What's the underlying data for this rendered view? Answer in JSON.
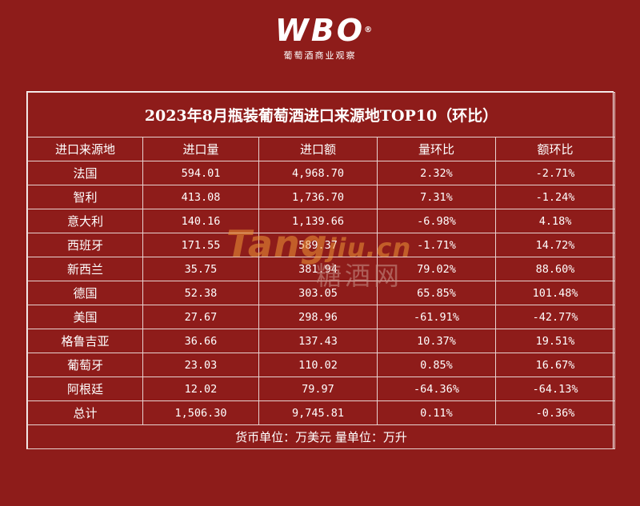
{
  "brand": {
    "logo_text": "WBO",
    "reg_mark": "®",
    "subtitle": "葡萄酒商业观察"
  },
  "table": {
    "title": "2023年8月瓶装葡萄酒进口来源地TOP10（环比）",
    "headers": [
      "进口来源地",
      "进口量",
      "进口额",
      "量环比",
      "额环比"
    ],
    "rows": [
      [
        "法国",
        "594.01",
        "4,968.70",
        "2.32%",
        "-2.71%"
      ],
      [
        "智利",
        "413.08",
        "1,736.70",
        "7.31%",
        "-1.24%"
      ],
      [
        "意大利",
        "140.16",
        "1,139.66",
        "-6.98%",
        "4.18%"
      ],
      [
        "西班牙",
        "171.55",
        "589.37",
        "-1.71%",
        "14.72%"
      ],
      [
        "新西兰",
        "35.75",
        "381.94",
        "79.02%",
        "88.60%"
      ],
      [
        "德国",
        "52.38",
        "303.05",
        "65.85%",
        "101.48%"
      ],
      [
        "美国",
        "27.67",
        "298.96",
        "-61.91%",
        "-42.77%"
      ],
      [
        "格鲁吉亚",
        "36.66",
        "137.43",
        "10.37%",
        "19.51%"
      ],
      [
        "葡萄牙",
        "23.03",
        "110.02",
        "0.85%",
        "16.67%"
      ],
      [
        "阿根廷",
        "12.02",
        "79.97",
        "-64.36%",
        "-64.13%"
      ],
      [
        "总计",
        "1,506.30",
        "9,745.81",
        "0.11%",
        "-0.36%"
      ]
    ],
    "footer": "货币单位：万美元  量单位：万升"
  },
  "watermark": {
    "text_main": "Tang",
    "text_tail": "jiu.cn",
    "text_cn": "糖酒网"
  },
  "colors": {
    "background": "#8e1c1a",
    "text": "#ffffff",
    "watermark": "#ec9637"
  }
}
